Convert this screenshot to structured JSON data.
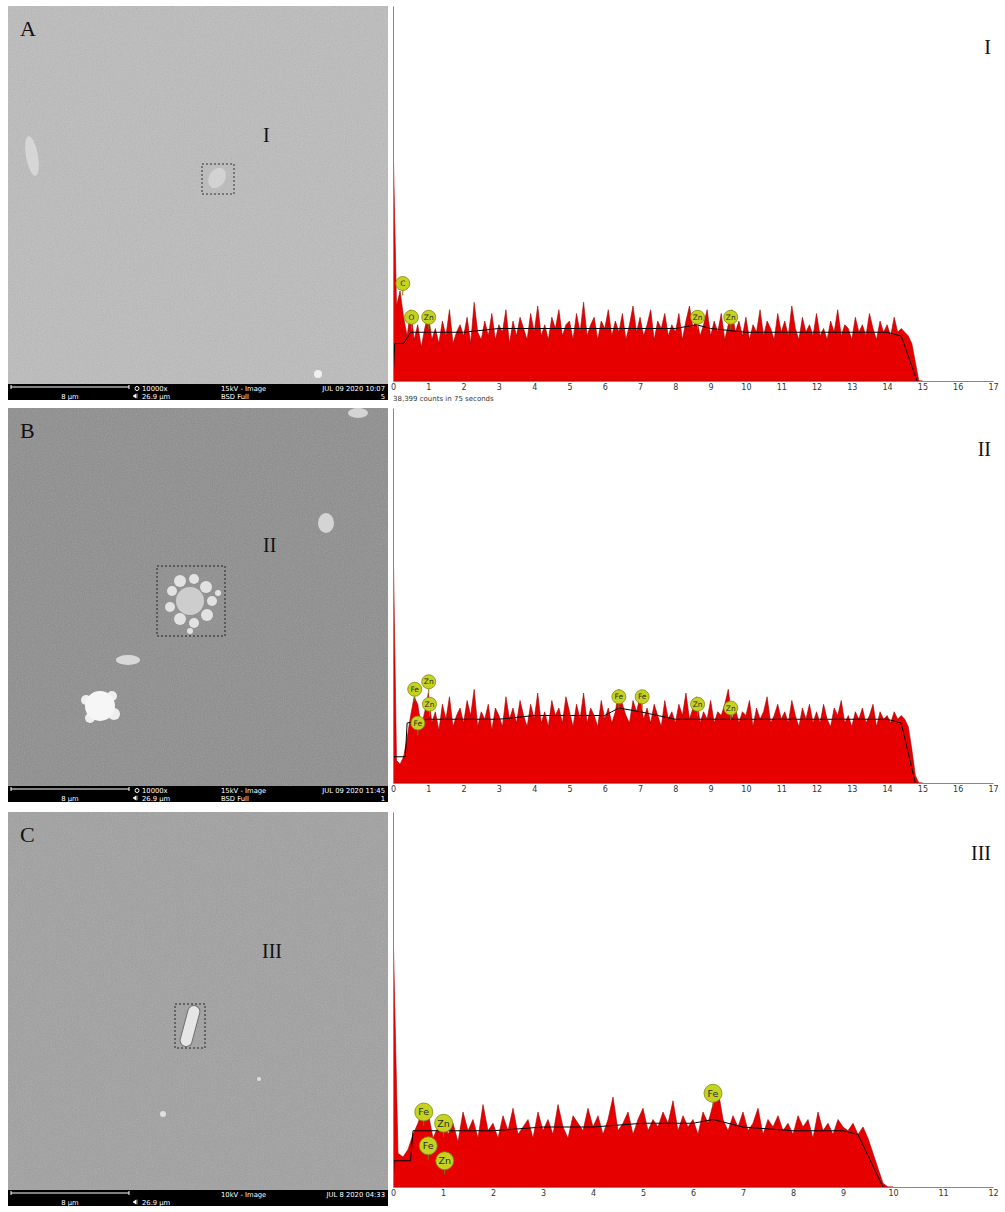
{
  "micrographs": [
    {
      "letter": "A",
      "region_label": "I",
      "scale_bar": "8 µm",
      "magnification": "10000x",
      "field_width": "26.9 µm",
      "beam": "15kV - Image",
      "detector": "BSD Full",
      "date": "JUL 09 2020 10:07",
      "frame": "5"
    },
    {
      "letter": "B",
      "region_label": "II",
      "scale_bar": "8 µm",
      "magnification": "10000x",
      "field_width": "26.9 µm",
      "beam": "15kV - Image",
      "detector": "BSD Full",
      "date": "JUL 09 2020 11:45",
      "frame": "1"
    },
    {
      "letter": "C",
      "region_label": "III",
      "scale_bar": "8 µm",
      "field_width": "26.9 µm",
      "beam": "10kV - Image",
      "date": "JUL 8 2020 04:33"
    }
  ],
  "chart_data": [
    {
      "type": "area",
      "title": "I",
      "subtitle": "38,399 counts in 75 seconds",
      "x": [
        0,
        0.1,
        0.2,
        0.3,
        0.4,
        0.5,
        0.6,
        0.7,
        0.8,
        0.9,
        1,
        1.1,
        1.2,
        1.3,
        1.4,
        1.5,
        1.6,
        1.7,
        1.8,
        1.9,
        2,
        2.1,
        2.2,
        2.3,
        2.4,
        2.5,
        2.6,
        2.7,
        2.8,
        2.9,
        3,
        3.1,
        3.2,
        3.3,
        3.4,
        3.5,
        3.6,
        3.7,
        3.8,
        3.9,
        4,
        4.1,
        4.2,
        4.3,
        4.4,
        4.5,
        4.6,
        4.7,
        4.8,
        4.9,
        5,
        5.1,
        5.2,
        5.3,
        5.4,
        5.5,
        5.6,
        5.7,
        5.8,
        5.9,
        6,
        6.1,
        6.2,
        6.3,
        6.4,
        6.5,
        6.6,
        6.7,
        6.8,
        6.9,
        7,
        7.1,
        7.2,
        7.3,
        7.4,
        7.5,
        7.6,
        7.7,
        7.8,
        7.9,
        8,
        8.1,
        8.2,
        8.3,
        8.4,
        8.5,
        8.6,
        8.7,
        8.8,
        8.9,
        9,
        9.1,
        9.2,
        9.3,
        9.4,
        9.5,
        9.6,
        9.7,
        9.8,
        9.9,
        10,
        10.1,
        10.2,
        10.3,
        10.4,
        10.5,
        10.6,
        10.7,
        10.8,
        10.9,
        11,
        11.1,
        11.2,
        11.3,
        11.4,
        11.5,
        11.6,
        11.7,
        11.8,
        11.9,
        12,
        12.1,
        12.2,
        12.3,
        12.4,
        12.5,
        12.6,
        12.7,
        12.8,
        12.9,
        13,
        13.1,
        13.2,
        13.3,
        13.4,
        13.5,
        13.6,
        13.7,
        13.8,
        13.9,
        14,
        14.1,
        14.2,
        14.3,
        14.4,
        14.5,
        14.6,
        14.7,
        14.8,
        14.9,
        15
      ],
      "series": [
        {
          "type": "area",
          "color": "#e60000",
          "values": [
            65,
            20,
            24,
            17,
            12,
            19,
            11,
            15,
            9,
            14,
            18,
            11,
            14,
            10,
            16,
            12,
            19,
            10,
            13,
            15,
            12,
            17,
            10,
            21,
            13,
            11,
            16,
            12,
            18,
            11,
            15,
            13,
            19,
            10,
            16,
            12,
            17,
            14,
            11,
            18,
            13,
            20,
            12,
            15,
            11,
            17,
            14,
            19,
            12,
            15,
            16,
            11,
            18,
            13,
            21,
            12,
            15,
            17,
            11,
            16,
            14,
            19,
            12,
            16,
            13,
            18,
            11,
            15,
            20,
            13,
            17,
            12,
            15,
            19,
            11,
            16,
            14,
            18,
            12,
            15,
            13,
            18,
            11,
            16,
            20,
            14,
            17,
            12,
            15,
            19,
            12,
            16,
            13,
            18,
            11,
            15,
            19,
            13,
            16,
            12,
            17,
            11,
            15,
            13,
            19,
            12,
            16,
            14,
            11,
            18,
            13,
            16,
            12,
            20,
            14,
            11,
            17,
            13,
            15,
            12,
            18,
            12,
            14,
            11,
            16,
            13,
            19,
            12,
            15,
            14,
            11,
            17,
            13,
            15,
            12,
            18,
            14,
            11,
            16,
            13,
            15,
            12,
            17,
            13,
            14,
            13,
            12,
            10,
            5,
            0,
            0
          ]
        },
        {
          "type": "line",
          "color": "#000000",
          "x": [
            0,
            0.05,
            0.3,
            0.5,
            1,
            2,
            3,
            4,
            5,
            6,
            7,
            8,
            8.6,
            9,
            10,
            11,
            12,
            13,
            14,
            14.4,
            14.85
          ],
          "values": [
            0,
            10,
            10,
            13,
            13,
            13,
            14,
            14,
            14,
            14,
            14,
            14,
            15,
            14,
            13,
            13,
            13,
            13,
            13,
            12,
            0
          ]
        }
      ],
      "xlim": [
        0,
        17
      ],
      "xticks": [
        0,
        1,
        2,
        3,
        4,
        5,
        6,
        7,
        8,
        9,
        10,
        11,
        12,
        13,
        14,
        15,
        16,
        17
      ],
      "ylim": [
        0,
        100
      ],
      "yticks": [],
      "tick_labels": "x",
      "annotations": [
        {
          "text": "C",
          "x": 0.277,
          "y": 26
        },
        {
          "text": "O",
          "x": 0.525,
          "y": 17
        },
        {
          "text": "Zn",
          "x": 1.012,
          "y": 17
        },
        {
          "text": "Zn",
          "x": 8.63,
          "y": 17
        },
        {
          "text": "Zn",
          "x": 9.57,
          "y": 17
        }
      ]
    },
    {
      "type": "area",
      "title": "II",
      "x": [
        0,
        0.1,
        0.2,
        0.3,
        0.4,
        0.5,
        0.6,
        0.7,
        0.8,
        0.9,
        1,
        1.1,
        1.2,
        1.3,
        1.4,
        1.5,
        1.6,
        1.7,
        1.8,
        1.9,
        2,
        2.1,
        2.2,
        2.3,
        2.4,
        2.5,
        2.6,
        2.7,
        2.8,
        2.9,
        3,
        3.1,
        3.2,
        3.3,
        3.4,
        3.5,
        3.6,
        3.7,
        3.8,
        3.9,
        4,
        4.1,
        4.2,
        4.3,
        4.4,
        4.5,
        4.6,
        4.7,
        4.8,
        4.9,
        5,
        5.1,
        5.2,
        5.3,
        5.4,
        5.5,
        5.6,
        5.7,
        5.8,
        5.9,
        6,
        6.1,
        6.2,
        6.3,
        6.4,
        6.5,
        6.6,
        6.7,
        6.8,
        6.9,
        7,
        7.1,
        7.2,
        7.3,
        7.4,
        7.5,
        7.6,
        7.7,
        7.8,
        7.9,
        8,
        8.1,
        8.2,
        8.3,
        8.4,
        8.5,
        8.6,
        8.7,
        8.8,
        8.9,
        9,
        9.1,
        9.2,
        9.3,
        9.4,
        9.5,
        9.6,
        9.7,
        9.8,
        9.9,
        10,
        10.1,
        10.2,
        10.3,
        10.4,
        10.5,
        10.6,
        10.7,
        10.8,
        10.9,
        11,
        11.1,
        11.2,
        11.3,
        11.4,
        11.5,
        11.6,
        11.7,
        11.8,
        11.9,
        12,
        12.1,
        12.2,
        12.3,
        12.4,
        12.5,
        12.6,
        12.7,
        12.8,
        12.9,
        13,
        13.1,
        13.2,
        13.3,
        13.4,
        13.5,
        13.6,
        13.7,
        13.8,
        13.9,
        14,
        14.1,
        14.2,
        14.3,
        14.4,
        14.5,
        14.6,
        14.7,
        14.8,
        14.9,
        15
      ],
      "series": [
        {
          "type": "area",
          "color": "#e60000",
          "values": [
            67,
            6,
            5,
            7,
            12,
            18,
            23,
            21,
            15,
            19,
            24,
            16,
            19,
            14,
            21,
            17,
            23,
            15,
            18,
            20,
            16,
            22,
            18,
            25,
            15,
            19,
            17,
            21,
            14,
            20,
            18,
            15,
            23,
            17,
            20,
            16,
            22,
            18,
            15,
            21,
            17,
            24,
            16,
            19,
            15,
            22,
            18,
            20,
            16,
            23,
            19,
            15,
            21,
            17,
            24,
            16,
            20,
            18,
            15,
            22,
            17,
            20,
            16,
            19,
            25,
            21,
            18,
            16,
            22,
            19,
            23,
            17,
            20,
            16,
            21,
            18,
            15,
            22,
            17,
            19,
            16,
            21,
            18,
            24,
            17,
            20,
            23,
            16,
            19,
            17,
            22,
            16,
            19,
            18,
            21,
            25,
            17,
            20,
            16,
            19,
            18,
            22,
            15,
            20,
            17,
            19,
            23,
            16,
            18,
            21,
            17,
            19,
            16,
            22,
            18,
            15,
            20,
            17,
            21,
            16,
            19,
            16,
            21,
            17,
            15,
            20,
            18,
            22,
            16,
            18,
            15,
            19,
            17,
            20,
            16,
            18,
            21,
            15,
            19,
            17,
            18,
            16,
            19,
            17,
            18,
            17,
            15,
            9,
            2,
            0,
            0
          ]
        },
        {
          "type": "line",
          "color": "#000000",
          "x": [
            0,
            0.02,
            0.35,
            0.4,
            1,
            2,
            3,
            4,
            5,
            6,
            6.4,
            7,
            8,
            9,
            10,
            11,
            12,
            13,
            14,
            14.4,
            14.8
          ],
          "values": [
            0,
            7,
            7,
            16,
            17,
            17,
            17,
            18,
            18,
            18,
            20,
            19,
            17,
            17,
            17,
            17,
            17,
            17,
            17,
            16,
            0
          ]
        }
      ],
      "xlim": [
        0,
        17
      ],
      "xticks": [
        0,
        1,
        2,
        3,
        4,
        5,
        6,
        7,
        8,
        9,
        10,
        11,
        12,
        13,
        14,
        15,
        16,
        17
      ],
      "ylim": [
        0,
        100
      ],
      "yticks": [],
      "tick_labels": "x",
      "annotations": [
        {
          "text": "Fe",
          "x": 0.615,
          "y": 25
        },
        {
          "text": "Zn",
          "x": 1.012,
          "y": 27
        },
        {
          "text": "Zn",
          "x": 1.034,
          "y": 21
        },
        {
          "text": "Fe",
          "x": 0.705,
          "y": 16
        },
        {
          "text": "Fe",
          "x": 6.4,
          "y": 23
        },
        {
          "text": "Fe",
          "x": 7.06,
          "y": 23
        },
        {
          "text": "Zn",
          "x": 8.63,
          "y": 21
        },
        {
          "text": "Zn",
          "x": 9.57,
          "y": 20
        }
      ]
    },
    {
      "type": "area",
      "title": "III",
      "x": [
        0,
        0.1,
        0.2,
        0.3,
        0.4,
        0.5,
        0.6,
        0.7,
        0.8,
        0.9,
        1,
        1.1,
        1.2,
        1.3,
        1.4,
        1.5,
        1.6,
        1.7,
        1.8,
        1.9,
        2,
        2.1,
        2.2,
        2.3,
        2.4,
        2.5,
        2.6,
        2.7,
        2.8,
        2.9,
        3,
        3.1,
        3.2,
        3.3,
        3.4,
        3.5,
        3.6,
        3.7,
        3.8,
        3.9,
        4,
        4.1,
        4.2,
        4.3,
        4.4,
        4.5,
        4.6,
        4.7,
        4.8,
        4.9,
        5,
        5.1,
        5.2,
        5.3,
        5.4,
        5.5,
        5.6,
        5.7,
        5.8,
        5.9,
        6,
        6.1,
        6.2,
        6.3,
        6.4,
        6.5,
        6.6,
        6.7,
        6.8,
        6.9,
        7,
        7.1,
        7.2,
        7.3,
        7.4,
        7.5,
        7.6,
        7.7,
        7.8,
        7.9,
        8,
        8.1,
        8.2,
        8.3,
        8.4,
        8.5,
        8.6,
        8.7,
        8.8,
        8.9,
        9,
        9.1,
        9.2,
        9.3,
        9.4,
        9.5,
        9.6,
        9.7,
        9.8,
        9.9,
        10
      ],
      "series": [
        {
          "type": "area",
          "color": "#e60000",
          "values": [
            70,
            9,
            8,
            10,
            14,
            17,
            21,
            20,
            13,
            16,
            19,
            14,
            17,
            12,
            20,
            15,
            18,
            13,
            22,
            15,
            17,
            13,
            19,
            15,
            21,
            14,
            16,
            18,
            13,
            20,
            15,
            18,
            14,
            22,
            16,
            13,
            19,
            17,
            15,
            21,
            16,
            19,
            14,
            18,
            24,
            15,
            17,
            20,
            14,
            18,
            21,
            15,
            18,
            16,
            20,
            17,
            23,
            15,
            19,
            16,
            18,
            14,
            20,
            17,
            22,
            26,
            18,
            15,
            19,
            16,
            20,
            15,
            17,
            21,
            14,
            18,
            16,
            19,
            15,
            17,
            14,
            19,
            16,
            18,
            13,
            20,
            15,
            17,
            14,
            18,
            16,
            15,
            17,
            14,
            16,
            13,
            9,
            5,
            1,
            0,
            0
          ]
        },
        {
          "type": "line",
          "color": "#000000",
          "x": [
            0,
            0.02,
            0.35,
            0.4,
            1,
            2,
            3,
            4,
            5,
            6,
            6.4,
            7,
            8,
            9,
            9.3,
            9.8
          ],
          "values": [
            0,
            7,
            7,
            15,
            15,
            15,
            16,
            16,
            17,
            17,
            18,
            16,
            15,
            15,
            14,
            0
          ]
        }
      ],
      "xlim": [
        0,
        12
      ],
      "xticks": [
        0,
        1,
        2,
        3,
        4,
        5,
        6,
        7,
        8,
        9,
        10,
        11,
        12
      ],
      "ylim": [
        0,
        100
      ],
      "yticks": [],
      "tick_labels": "x",
      "annotations": [
        {
          "text": "Fe",
          "x": 0.615,
          "y": 20
        },
        {
          "text": "Fe",
          "x": 0.705,
          "y": 11
        },
        {
          "text": "Zn",
          "x": 1.012,
          "y": 17
        },
        {
          "text": "Zn",
          "x": 1.034,
          "y": 7
        },
        {
          "text": "Fe",
          "x": 6.4,
          "y": 25
        }
      ]
    }
  ]
}
